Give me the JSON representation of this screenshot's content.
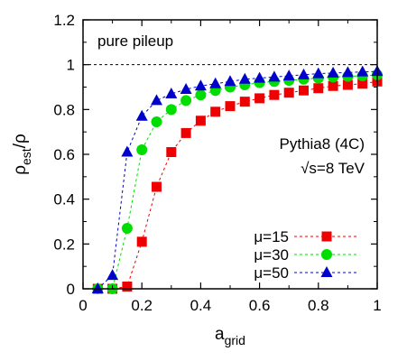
{
  "chart_data": {
    "type": "line",
    "xlabel": {
      "base": "a",
      "sub": "grid"
    },
    "ylabel": {
      "base": "ρ",
      "sub": "est",
      "tail": "/ρ"
    },
    "xlim": [
      0,
      1
    ],
    "ylim": [
      0,
      1.2
    ],
    "x_ticks": [
      "0",
      "0.2",
      "0.4",
      "0.6",
      "0.8",
      "1"
    ],
    "y_ticks": [
      "0",
      "0.2",
      "0.4",
      "0.6",
      "0.8",
      "1",
      "1.2"
    ],
    "grid": false,
    "reference_line": {
      "y": 1,
      "style": "dashed",
      "color": "#000000"
    },
    "annotations": {
      "panel_label": "pure pileup",
      "generator": "Pythia8 (4C)",
      "energy": "√s=8 TeV"
    },
    "legend_position": "bottom-right",
    "x": [
      0.05,
      0.1,
      0.15,
      0.2,
      0.25,
      0.3,
      0.35,
      0.4,
      0.45,
      0.5,
      0.55,
      0.6,
      0.65,
      0.7,
      0.75,
      0.8,
      0.85,
      0.9,
      0.95,
      1.0
    ],
    "series": [
      {
        "name": "μ=15",
        "color": "#ee0000",
        "marker": "square",
        "values": [
          0.0,
          0.0,
          0.01,
          0.21,
          0.455,
          0.61,
          0.695,
          0.75,
          0.79,
          0.815,
          0.835,
          0.85,
          0.865,
          0.875,
          0.885,
          0.895,
          0.905,
          0.91,
          0.915,
          0.925
        ]
      },
      {
        "name": "μ=30",
        "color": "#00dd00",
        "marker": "circle",
        "values": [
          0.0,
          0.0,
          0.27,
          0.62,
          0.745,
          0.8,
          0.84,
          0.865,
          0.885,
          0.9,
          0.91,
          0.92,
          0.925,
          0.93,
          0.935,
          0.94,
          0.945,
          0.948,
          0.95,
          0.955
        ]
      },
      {
        "name": "μ=50",
        "color": "#0000cc",
        "marker": "triangle",
        "values": [
          0.0,
          0.06,
          0.61,
          0.77,
          0.84,
          0.87,
          0.89,
          0.905,
          0.915,
          0.925,
          0.935,
          0.94,
          0.945,
          0.95,
          0.955,
          0.96,
          0.963,
          0.965,
          0.968,
          0.97
        ]
      }
    ]
  }
}
